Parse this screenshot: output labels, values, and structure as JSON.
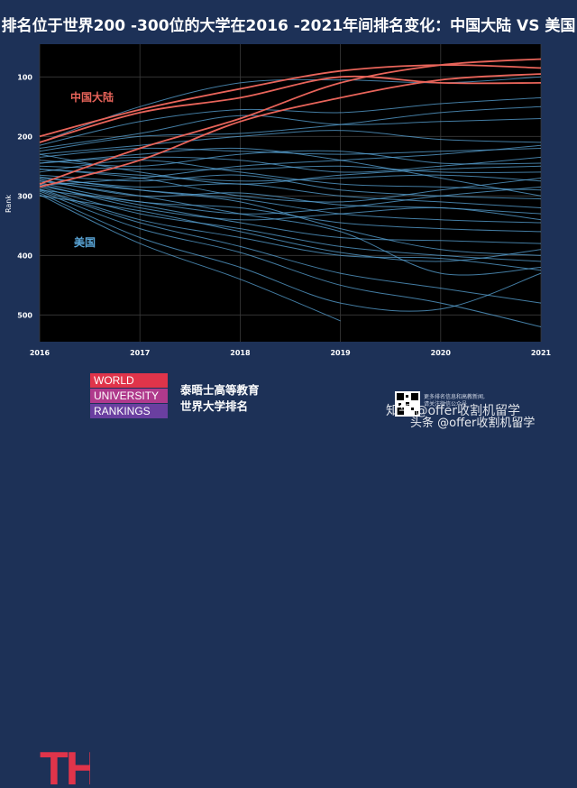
{
  "title": "排名位于世界200 -300位的大学在2016 -2021年间排名变化：中国大陆 VS 美国",
  "chart_data": {
    "type": "line",
    "ylabel": "Rank",
    "y_reversed": true,
    "ylim": [
      45,
      545
    ],
    "yticks": [
      100,
      200,
      300,
      400,
      500
    ],
    "x": [
      2016,
      2017,
      2018,
      2019,
      2020,
      2021
    ],
    "xlim": [
      2016,
      2021
    ],
    "grid": true,
    "annotations": [
      {
        "text": "中国大陆",
        "color": "#e8645a"
      },
      {
        "text": "美国",
        "color": "#5aa6d8"
      }
    ],
    "colors": {
      "china": "#e8645a",
      "usa": "#5aa6d8",
      "background": "#000000",
      "page": "#1d3157"
    },
    "series": [
      {
        "group": "china",
        "values": [
          200,
          155,
          120,
          90,
          80,
          85
        ]
      },
      {
        "group": "china",
        "values": [
          280,
          220,
          170,
          110,
          80,
          70
        ]
      },
      {
        "group": "china",
        "values": [
          285,
          240,
          175,
          135,
          105,
          95
        ]
      },
      {
        "group": "china",
        "values": [
          210,
          160,
          135,
          100,
          110,
          110
        ]
      },
      {
        "group": "usa",
        "values": [
          210,
          150,
          110,
          105,
          110,
          100
        ]
      },
      {
        "group": "usa",
        "values": [
          215,
          175,
          155,
          160,
          145,
          135
        ]
      },
      {
        "group": "usa",
        "values": [
          220,
          195,
          165,
          180,
          175,
          170
        ]
      },
      {
        "group": "usa",
        "values": [
          225,
          200,
          195,
          180,
          160,
          150
        ]
      },
      {
        "group": "usa",
        "values": [
          230,
          215,
          200,
          190,
          205,
          210
        ]
      },
      {
        "group": "usa",
        "values": [
          235,
          220,
          225,
          230,
          225,
          220
        ]
      },
      {
        "group": "usa",
        "values": [
          240,
          250,
          230,
          225,
          245,
          245
        ]
      },
      {
        "group": "usa",
        "values": [
          245,
          235,
          240,
          260,
          250,
          235
        ]
      },
      {
        "group": "usa",
        "values": [
          250,
          255,
          255,
          250,
          260,
          260
        ]
      },
      {
        "group": "usa",
        "values": [
          255,
          265,
          275,
          270,
          265,
          275
        ]
      },
      {
        "group": "usa",
        "values": [
          260,
          240,
          260,
          280,
          285,
          290
        ]
      },
      {
        "group": "usa",
        "values": [
          265,
          275,
          265,
          290,
          300,
          305
        ]
      },
      {
        "group": "usa",
        "values": [
          270,
          285,
          280,
          300,
          310,
          320
        ]
      },
      {
        "group": "usa",
        "values": [
          272,
          300,
          295,
          315,
          320,
          330
        ]
      },
      {
        "group": "usa",
        "values": [
          275,
          290,
          305,
          330,
          340,
          345
        ]
      },
      {
        "group": "usa",
        "values": [
          278,
          310,
          320,
          345,
          355,
          360
        ]
      },
      {
        "group": "usa",
        "values": [
          280,
          320,
          340,
          330,
          320,
          340
        ]
      },
      {
        "group": "usa",
        "values": [
          283,
          315,
          345,
          370,
          375,
          380
        ]
      },
      {
        "group": "usa",
        "values": [
          285,
          330,
          355,
          385,
          400,
          410
        ]
      },
      {
        "group": "usa",
        "values": [
          288,
          340,
          370,
          400,
          405,
          425
        ]
      },
      {
        "group": "usa",
        "values": [
          290,
          345,
          385,
          430,
          455,
          480
        ]
      },
      {
        "group": "usa",
        "values": [
          292,
          355,
          395,
          450,
          480,
          520
        ]
      },
      {
        "group": "usa",
        "values": [
          295,
          370,
          420,
          480,
          490,
          430
        ]
      },
      {
        "group": "usa",
        "values": [
          298,
          380,
          440,
          510,
          null,
          null
        ]
      },
      {
        "group": "usa",
        "values": [
          230,
          260,
          280,
          265,
          255,
          250
        ]
      },
      {
        "group": "usa",
        "values": [
          245,
          230,
          220,
          240,
          270,
          300
        ]
      },
      {
        "group": "usa",
        "values": [
          255,
          270,
          300,
          310,
          290,
          270
        ]
      },
      {
        "group": "usa",
        "values": [
          268,
          290,
          310,
          355,
          390,
          400
        ]
      },
      {
        "group": "usa",
        "values": [
          275,
          300,
          330,
          360,
          430,
          420
        ]
      },
      {
        "group": "usa",
        "values": [
          282,
          270,
          250,
          240,
          230,
          215
        ]
      },
      {
        "group": "usa",
        "values": [
          290,
          310,
          330,
          320,
          300,
          285
        ]
      },
      {
        "group": "usa",
        "values": [
          300,
          325,
          360,
          395,
          410,
          390
        ]
      }
    ]
  },
  "logo": {
    "brand_letters": "THE",
    "lines": [
      "WORLD",
      "UNIVERSITY",
      "RANKINGS"
    ],
    "bar_colors": [
      "#e0344a",
      "#b03a8c",
      "#6a3fa0"
    ],
    "logo_color": "#e0344a"
  },
  "footer": {
    "line1": "泰晤士高等教育",
    "line2": "世界大学排名",
    "qr_caption_1": "更多排名信息和高教新闻,",
    "qr_caption_2": "请关注微信公众号",
    "watermark_1": "知乎 @offer收割机留学",
    "watermark_2": "头条 @offer收割机留学"
  }
}
